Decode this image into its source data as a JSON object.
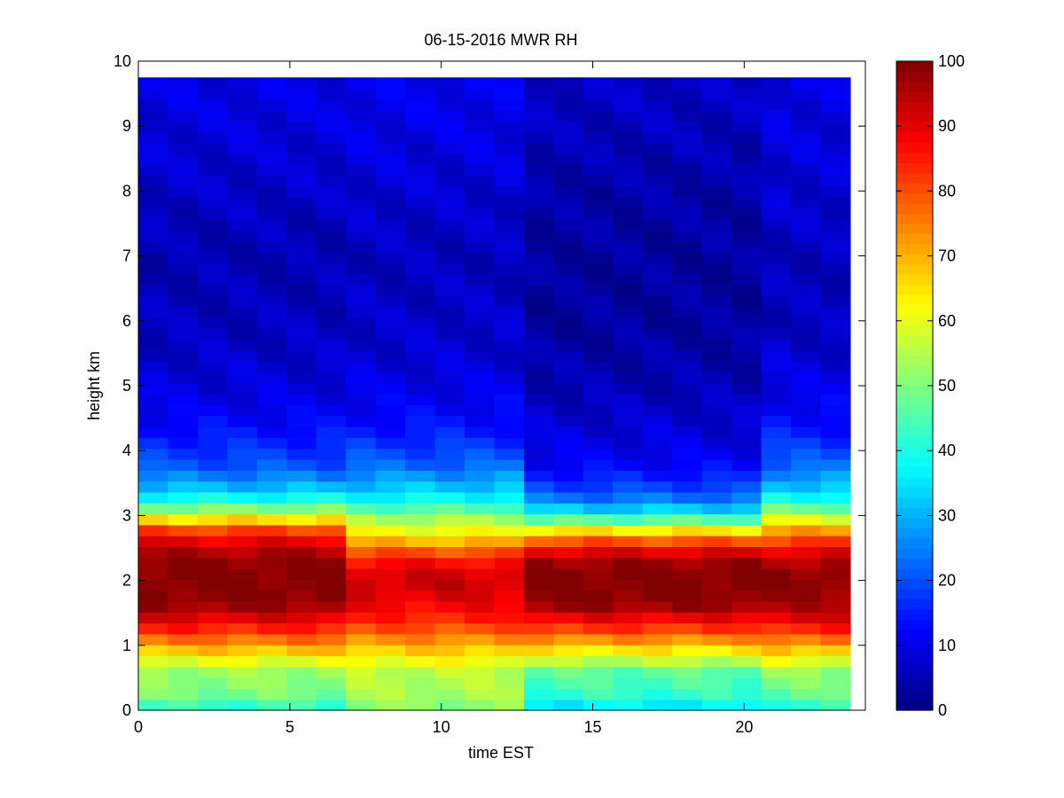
{
  "chart_data": {
    "type": "heatmap",
    "title": "06-15-2016 MWR RH",
    "xlabel": "time EST",
    "ylabel": "height km",
    "xlim": [
      0,
      24
    ],
    "ylim": [
      0,
      10
    ],
    "x_ticks": [
      "0",
      "5",
      "10",
      "15",
      "20"
    ],
    "y_ticks": [
      "0",
      "1",
      "2",
      "3",
      "4",
      "5",
      "6",
      "7",
      "8",
      "9",
      "10"
    ],
    "colorbar": {
      "colormap": "jet",
      "range": [
        0,
        100
      ],
      "ticks": [
        "0",
        "10",
        "20",
        "30",
        "40",
        "50",
        "60",
        "70",
        "80",
        "90",
        "100"
      ]
    },
    "grid": false,
    "x": [
      0,
      1,
      2,
      3,
      4,
      5,
      6,
      7,
      8,
      9,
      10,
      11,
      12,
      13,
      14,
      15,
      16,
      17,
      18,
      19,
      20,
      21,
      22,
      23
    ],
    "x_range": [
      0,
      23.5
    ],
    "height_range": [
      0,
      9.75
    ],
    "height_profile_anchors": [
      0,
      0.1,
      0.3,
      0.6,
      0.8,
      1.0,
      1.2,
      1.4,
      1.6,
      1.8,
      2.0,
      2.2,
      2.4,
      2.6,
      2.8,
      3.0,
      3.2,
      3.5,
      3.8,
      4.2,
      4.6,
      5.0,
      5.5,
      6.0,
      7.0,
      8.0,
      9.0,
      9.75
    ],
    "rh_profile_groups": {
      "early_morning_0_6h": [
        25,
        47,
        50,
        53,
        62,
        72,
        82,
        90,
        97,
        100,
        100,
        100,
        97,
        90,
        80,
        60,
        42,
        28,
        20,
        15,
        11,
        9,
        7,
        6,
        5,
        7,
        9,
        10
      ],
      "late_morning_7_12h": [
        44,
        53,
        54,
        56,
        63,
        70,
        78,
        84,
        88,
        91,
        93,
        90,
        82,
        70,
        60,
        52,
        40,
        30,
        22,
        16,
        12,
        10,
        8,
        7,
        6,
        8,
        10,
        11
      ],
      "afternoon_13_20h": [
        20,
        40,
        43,
        47,
        58,
        68,
        80,
        88,
        97,
        100,
        100,
        100,
        93,
        80,
        62,
        40,
        26,
        17,
        12,
        9,
        7,
        5,
        4,
        3,
        3,
        4,
        6,
        7
      ],
      "evening_21_23h": [
        30,
        45,
        48,
        52,
        62,
        72,
        82,
        90,
        95,
        98,
        100,
        98,
        92,
        82,
        70,
        56,
        42,
        30,
        22,
        16,
        12,
        10,
        8,
        6,
        6,
        8,
        9,
        10
      ]
    },
    "time_group_assignment": [
      0,
      0,
      0,
      0,
      0,
      0,
      0,
      1,
      1,
      1,
      1,
      1,
      1,
      2,
      2,
      2,
      2,
      2,
      2,
      2,
      2,
      3,
      3,
      3
    ]
  }
}
